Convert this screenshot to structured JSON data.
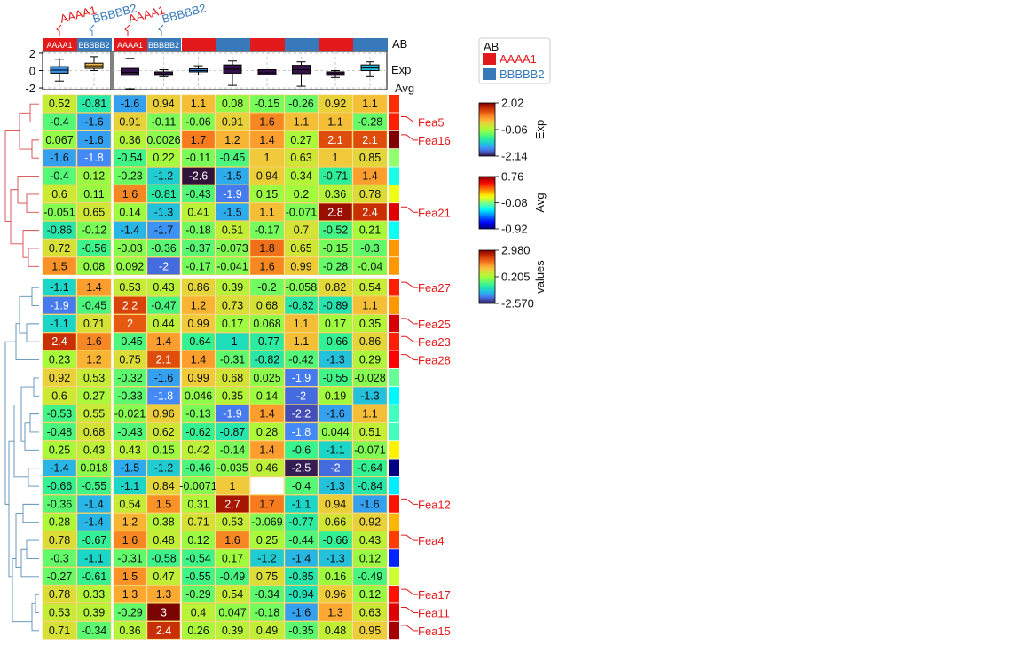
{
  "chart_data": {
    "type": "heatmap",
    "title": "",
    "top_annotation": {
      "ab_label": "AB",
      "exp_label": "Exp",
      "ab_groups": [
        "AAAA1",
        "BBBBB2",
        "AAAA1",
        "BBBBB2",
        "AAAA1",
        "BBBBB2",
        "AAAA1",
        "BBBBB2",
        "AAAA1",
        "BBBBB2"
      ],
      "group_labels": [
        "AAAA1",
        "BBBBB2",
        "AAAA1",
        "BBBBB2"
      ],
      "exp_ticks": [
        "2",
        "0",
        "-2"
      ],
      "exp_ylim": [
        -2.2,
        2.2
      ],
      "boxes": [
        {
          "q1": -0.3,
          "median": 0.05,
          "q3": 0.45,
          "lo": -1.2,
          "hi": 1.3,
          "color": "#3a8ee6"
        },
        {
          "q1": 0.25,
          "median": 0.55,
          "q3": 0.85,
          "lo": 0.0,
          "hi": 1.6,
          "color": "#f0b94a"
        },
        {
          "q1": -0.55,
          "median": -0.2,
          "q3": 0.25,
          "lo": -2.1,
          "hi": 1.4,
          "color": "#35124a"
        },
        {
          "q1": -0.55,
          "median": -0.4,
          "q3": -0.15,
          "lo": -0.7,
          "hi": 0.1,
          "color": "#35124a"
        },
        {
          "q1": -0.15,
          "median": 0.0,
          "q3": 0.2,
          "lo": -0.5,
          "hi": 0.55,
          "color": "#3a8ee6"
        },
        {
          "q1": -0.3,
          "median": 0.15,
          "q3": 0.65,
          "lo": -1.7,
          "hi": 1.1,
          "color": "#35124a"
        },
        {
          "q1": -0.5,
          "median": -0.25,
          "q3": 0.1,
          "lo": -0.5,
          "hi": 0.1,
          "color": "#35124a"
        },
        {
          "q1": -0.35,
          "median": 0.1,
          "q3": 0.6,
          "lo": -1.8,
          "hi": 1.0,
          "color": "#35124a"
        },
        {
          "q1": -0.55,
          "median": -0.35,
          "q3": -0.15,
          "lo": -0.8,
          "hi": 0.0,
          "color": "#35124a"
        },
        {
          "q1": 0.0,
          "median": 0.3,
          "q3": 0.65,
          "lo": -0.7,
          "hi": 1.0,
          "color": "#29b6d9"
        }
      ]
    },
    "avg_label": "Avg",
    "rows": [
      {
        "values": [
          "0.52",
          "-0.81",
          "-1.6",
          "0.94",
          "1.1",
          "0.08",
          "-0.15",
          "-0.26",
          "0.92",
          "1.1"
        ],
        "avg": 0.48,
        "label": ""
      },
      {
        "values": [
          "-0.4",
          "-1.6",
          "0.91",
          "-0.11",
          "-0.06",
          "0.91",
          "1.6",
          "1.1",
          "1.1",
          "-0.28"
        ],
        "avg": 0.5,
        "label": "Fea5"
      },
      {
        "values": [
          "0.067",
          "-1.6",
          "0.36",
          "0.0026",
          "1.7",
          "1.2",
          "1.4",
          "0.27",
          "2.1",
          "2.1"
        ],
        "avg": 0.76,
        "label": "Fea16"
      },
      {
        "values": [
          "-1.6",
          "-1.8",
          "-0.54",
          "0.22",
          "-0.11",
          "-0.45",
          "1",
          "0.63",
          "1",
          "0.85"
        ],
        "avg": -0.05,
        "label": ""
      },
      {
        "values": [
          "-0.4",
          "0.12",
          "-0.23",
          "-1.2",
          "-2.6",
          "-1.5",
          "0.94",
          "0.34",
          "-0.71",
          "1.4"
        ],
        "avg": -0.25,
        "label": ""
      },
      {
        "values": [
          "0.6",
          "0.11",
          "1.6",
          "-0.81",
          "-0.43",
          "-1.9",
          "0.15",
          "0.2",
          "0.36",
          "0.78"
        ],
        "avg": 0.1,
        "label": ""
      },
      {
        "values": [
          "-0.051",
          "0.65",
          "0.14",
          "-1.3",
          "0.41",
          "-1.5",
          "1.1",
          "-0.071",
          "2.8",
          "2.4"
        ],
        "avg": 0.6,
        "label": "Fea21"
      },
      {
        "values": [
          "-0.86",
          "-0.12",
          "-1.4",
          "-1.7",
          "-0.18",
          "0.51",
          "-0.17",
          "0.7",
          "-0.52",
          "0.21"
        ],
        "avg": -0.27,
        "label": ""
      },
      {
        "values": [
          "0.72",
          "-0.56",
          "-0.03",
          "-0.36",
          "-0.37",
          "-0.073",
          "1.8",
          "0.65",
          "-0.15",
          "-0.3"
        ],
        "avg": 0.3,
        "label": ""
      },
      {
        "values": [
          "1.5",
          "0.08",
          "0.092",
          "-2",
          "-0.17",
          "-0.041",
          "1.6",
          "0.99",
          "-0.28",
          "-0.04"
        ],
        "avg": 0.3,
        "label": ""
      },
      {
        "values": [
          "-1.1",
          "1.4",
          "0.53",
          "0.43",
          "0.86",
          "0.39",
          "-0.2",
          "-0.058",
          "0.82",
          "0.54"
        ],
        "avg": 0.5,
        "label": "Fea27"
      },
      {
        "values": [
          "-1.9",
          "-0.45",
          "2.2",
          "-0.47",
          "1.2",
          "0.73",
          "0.68",
          "-0.82",
          "-0.89",
          "1.1"
        ],
        "avg": 0.3,
        "label": ""
      },
      {
        "values": [
          "-1.1",
          "0.71",
          "2",
          "0.44",
          "0.99",
          "0.17",
          "0.068",
          "1.1",
          "0.17",
          "0.35"
        ],
        "avg": 0.62,
        "label": "Fea25"
      },
      {
        "values": [
          "2.4",
          "1.6",
          "-0.45",
          "1.4",
          "-0.64",
          "-1",
          "-0.77",
          "1.1",
          "-0.66",
          "0.86"
        ],
        "avg": 0.5,
        "label": "Fea23"
      },
      {
        "values": [
          "0.23",
          "1.2",
          "0.75",
          "2.1",
          "1.4",
          "-0.31",
          "-0.82",
          "-0.42",
          "-1.3",
          "0.29"
        ],
        "avg": 0.55,
        "label": "Fea28"
      },
      {
        "values": [
          "0.92",
          "0.53",
          "-0.32",
          "-1.6",
          "0.99",
          "0.68",
          "0.025",
          "-1.9",
          "-0.55",
          "-0.028"
        ],
        "avg": -0.12,
        "label": ""
      },
      {
        "values": [
          "0.6",
          "0.27",
          "-0.33",
          "-1.8",
          "0.046",
          "0.35",
          "0.14",
          "-2",
          "0.19",
          "-1.3"
        ],
        "avg": -0.3,
        "label": ""
      },
      {
        "values": [
          "-0.53",
          "0.55",
          "-0.021",
          "0.96",
          "-0.13",
          "-1.9",
          "1.4",
          "-2.2",
          "-1.6",
          "1.1"
        ],
        "avg": -0.18,
        "label": ""
      },
      {
        "values": [
          "-0.48",
          "0.68",
          "-0.43",
          "0.62",
          "-0.62",
          "-0.87",
          "0.28",
          "-1.8",
          "0.044",
          "0.51"
        ],
        "avg": -0.18,
        "label": ""
      },
      {
        "values": [
          "0.25",
          "0.43",
          "0.43",
          "0.15",
          "0.42",
          "-0.14",
          "1.4",
          "-0.6",
          "-1.1",
          "-0.071"
        ],
        "avg": 0.15,
        "label": ""
      },
      {
        "values": [
          "-1.4",
          "0.018",
          "-1.5",
          "-1.2",
          "-0.46",
          "-0.035",
          "0.46",
          "-2.5",
          "-2",
          "-0.64"
        ],
        "avg": -0.92,
        "label": ""
      },
      {
        "values": [
          "-0.66",
          "-0.55",
          "-1.1",
          "0.84",
          "-0.0071",
          "1",
          "",
          "-0.4",
          "-1.3",
          "-0.84"
        ],
        "avg": -0.32,
        "label": ""
      },
      {
        "values": [
          "-0.36",
          "-1.4",
          "0.54",
          "1.5",
          "0.31",
          "2.7",
          "1.7",
          "-1.1",
          "0.94",
          "-1.6"
        ],
        "avg": 0.52,
        "label": "Fea12"
      },
      {
        "values": [
          "0.28",
          "-1.4",
          "1.2",
          "0.38",
          "0.71",
          "0.53",
          "-0.069",
          "-0.77",
          "0.66",
          "0.92"
        ],
        "avg": 0.25,
        "label": ""
      },
      {
        "values": [
          "0.78",
          "-0.67",
          "1.6",
          "0.48",
          "0.12",
          "1.6",
          "0.25",
          "-0.44",
          "-0.66",
          "0.43"
        ],
        "avg": 0.45,
        "label": "Fea4"
      },
      {
        "values": [
          "-0.3",
          "-1.1",
          "-0.31",
          "-0.58",
          "-0.54",
          "0.17",
          "-1.2",
          "-1.4",
          "-1.3",
          "0.12"
        ],
        "avg": -0.65,
        "label": ""
      },
      {
        "values": [
          "-0.27",
          "-0.61",
          "1.5",
          "0.47",
          "-0.55",
          "-0.49",
          "0.75",
          "-0.85",
          "0.16",
          "-0.49"
        ],
        "avg": 0.05,
        "label": ""
      },
      {
        "values": [
          "0.78",
          "0.33",
          "1.3",
          "1.3",
          "-0.29",
          "0.54",
          "-0.34",
          "-0.94",
          "0.96",
          "0.12"
        ],
        "avg": 0.52,
        "label": "Fea17"
      },
      {
        "values": [
          "0.53",
          "0.39",
          "-0.29",
          "3",
          "0.4",
          "0.047",
          "-0.18",
          "-1.6",
          "1.3",
          "0.63"
        ],
        "avg": 0.6,
        "label": "Fea11"
      },
      {
        "values": [
          "0.71",
          "-0.34",
          "0.36",
          "2.4",
          "0.26",
          "0.39",
          "0.49",
          "-0.35",
          "0.48",
          "0.95"
        ],
        "avg": 0.7,
        "label": "Fea15"
      }
    ],
    "row_split_after": 10,
    "col_split_after": 2,
    "legend": {
      "title": "AB",
      "items": [
        {
          "name": "AAAA1",
          "color": "#e31a1c"
        },
        {
          "name": "BBBBB2",
          "color": "#3779b9"
        }
      ]
    },
    "colorbars": [
      {
        "title": "Exp",
        "ticks": [
          "2.02",
          "-0.06",
          "-2.14"
        ],
        "range": [
          -2.14,
          2.02
        ]
      },
      {
        "title": "Avg",
        "ticks": [
          "0.76",
          "-0.08",
          "-0.92"
        ],
        "range": [
          -0.92,
          0.76
        ]
      },
      {
        "title": "values",
        "ticks": [
          "2.980",
          "0.205",
          "-2.570"
        ],
        "range": [
          -2.57,
          2.98
        ]
      }
    ],
    "colors": {
      "cluster1": "#d6484b",
      "cluster2": "#5a8fb5",
      "feature_label": "#e31a1c",
      "group_a": "#e31a1c",
      "group_b": "#3779b9"
    }
  }
}
